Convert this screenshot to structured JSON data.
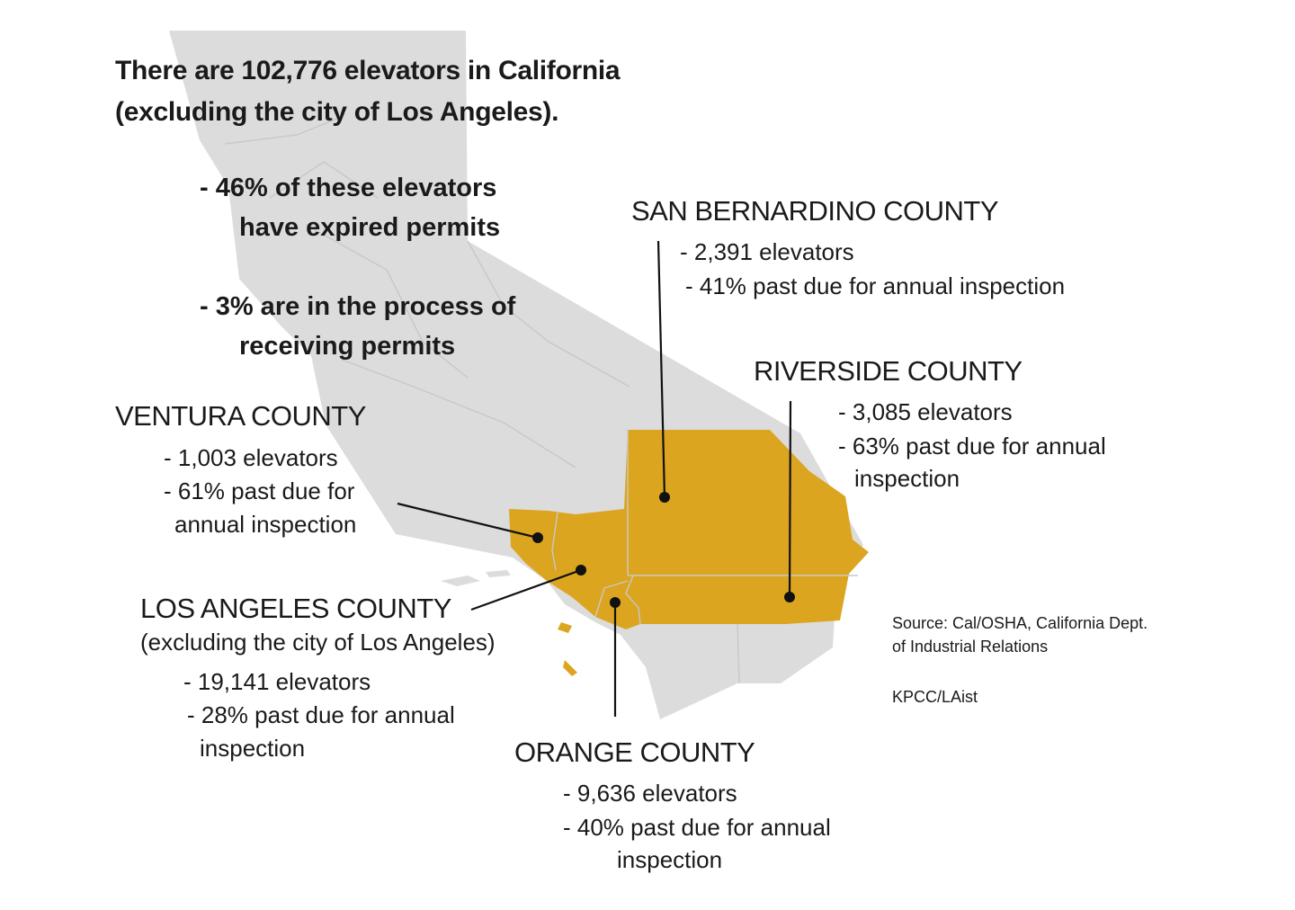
{
  "headline": {
    "line1": "There are 102,776 elevators in California",
    "line2": "(excluding the city of Los Angeles)."
  },
  "stats": [
    {
      "line1": "- 46% of these elevators",
      "line2": "have expired permits"
    },
    {
      "line1": "- 3% are in the process of",
      "line2": "receiving permits"
    }
  ],
  "counties": {
    "san_bernardino": {
      "name": "SAN BERNARDINO COUNTY",
      "lines": [
        "- 2,391 elevators",
        "- 41% past due for annual inspection"
      ]
    },
    "riverside": {
      "name": "RIVERSIDE COUNTY",
      "lines": [
        "- 3,085 elevators",
        "- 63% past due for annual",
        "inspection"
      ]
    },
    "ventura": {
      "name": "VENTURA COUNTY",
      "lines": [
        "- 1,003 elevators",
        "- 61% past due for",
        "annual inspection"
      ]
    },
    "los_angeles": {
      "name": "LOS ANGELES COUNTY",
      "subtitle": "(excluding the city of Los Angeles)",
      "lines": [
        "- 19,141 elevators",
        "- 28% past due for annual",
        "inspection"
      ]
    },
    "orange": {
      "name": "ORANGE COUNTY",
      "lines": [
        "- 9,636 elevators",
        "-  40% past due for annual",
        "inspection"
      ]
    }
  },
  "source": {
    "line1": "Source: Cal/OSHA, California Dept.",
    "line2": "of Industrial Relations",
    "credit": "KPCC/LAist"
  },
  "colors": {
    "state_fill": "#dcdcdc",
    "highlight_fill": "#dca520",
    "boundary": "#c8c8c8",
    "leader_line": "#111111"
  }
}
